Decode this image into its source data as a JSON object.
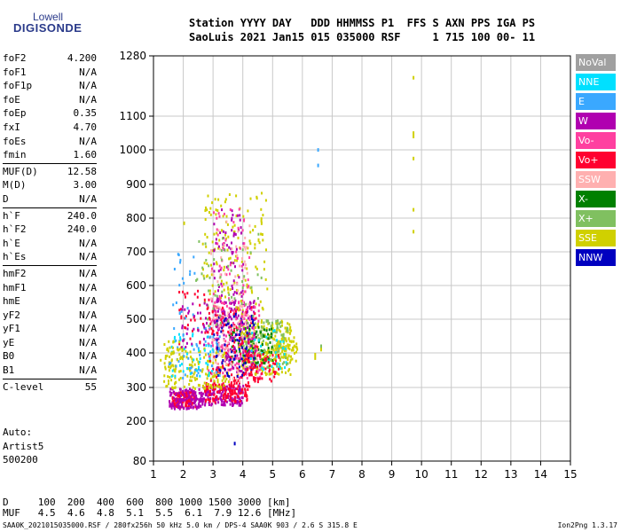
{
  "logo": {
    "line1": "Lowell",
    "line2": "DIGISONDE"
  },
  "header": {
    "line1": "Station YYYY DAY   DDD HHMMSS P1  FFS S AXN PPS IGA PS",
    "line2": "SaoLuis 2021 Jan15 015 035000 RSF     1 715 100 00- 11"
  },
  "params": [
    {
      "group": 0,
      "name": "foF2",
      "value": "4.200"
    },
    {
      "group": 0,
      "name": "foF1",
      "value": "N/A"
    },
    {
      "group": 0,
      "name": "foF1p",
      "value": "N/A"
    },
    {
      "group": 0,
      "name": "foE",
      "value": "N/A"
    },
    {
      "group": 0,
      "name": "foEp",
      "value": "0.35"
    },
    {
      "group": 0,
      "name": "fxI",
      "value": "4.70"
    },
    {
      "group": 0,
      "name": "foEs",
      "value": "N/A"
    },
    {
      "group": 0,
      "name": "fmin",
      "value": "1.60"
    },
    {
      "group": 1,
      "name": "MUF(D)",
      "value": "12.58"
    },
    {
      "group": 1,
      "name": "M(D)",
      "value": "3.00"
    },
    {
      "group": 1,
      "name": "D",
      "value": "N/A"
    },
    {
      "group": 2,
      "name": "h`F",
      "value": "240.0"
    },
    {
      "group": 2,
      "name": "h`F2",
      "value": "240.0"
    },
    {
      "group": 2,
      "name": "h`E",
      "value": "N/A"
    },
    {
      "group": 2,
      "name": "h`Es",
      "value": "N/A"
    },
    {
      "group": 3,
      "name": "hmF2",
      "value": "N/A"
    },
    {
      "group": 3,
      "name": "hmF1",
      "value": "N/A"
    },
    {
      "group": 3,
      "name": "hmE",
      "value": "N/A"
    },
    {
      "group": 3,
      "name": "yF2",
      "value": "N/A"
    },
    {
      "group": 3,
      "name": "yF1",
      "value": "N/A"
    },
    {
      "group": 3,
      "name": "yE",
      "value": "N/A"
    },
    {
      "group": 3,
      "name": "B0",
      "value": "N/A"
    },
    {
      "group": 3,
      "name": "B1",
      "value": "N/A"
    },
    {
      "group": 4,
      "name": "C-level",
      "value": "55"
    }
  ],
  "auto": {
    "line1": "Auto:",
    "line2": "Artist5",
    "line3": "500200"
  },
  "legend": [
    {
      "label": "NoVal",
      "color": "#a0a0a0"
    },
    {
      "label": "NNE",
      "color": "#00e0ff"
    },
    {
      "label": "E",
      "color": "#3aa8ff"
    },
    {
      "label": "W",
      "color": "#b000b0"
    },
    {
      "label": "Vo-",
      "color": "#ff40a0"
    },
    {
      "label": "Vo+",
      "color": "#ff0030"
    },
    {
      "label": "SSW",
      "color": "#ffb0b0"
    },
    {
      "label": "X-",
      "color": "#008000"
    },
    {
      "label": "X+",
      "color": "#80c060"
    },
    {
      "label": "SSE",
      "color": "#d0d000"
    },
    {
      "label": "NNW",
      "color": "#0000c0"
    }
  ],
  "footer": {
    "line1": "D     100  200  400  600  800 1000 1500 3000 [km]",
    "line2": "MUF   4.5  4.6  4.8  5.1  5.5  6.1  7.9 12.6 [MHz]",
    "line3": "SAA0K_2021015035000.RSF / 280fx256h 50 kHz 5.0 km / DPS-4 SAA0K 903 / 2.6 S 315.8 E",
    "line4": "Ion2Png 1.3.17"
  },
  "chart_data": {
    "type": "scatter",
    "x_ticks": [
      1,
      2,
      3,
      4,
      5,
      6,
      7,
      8,
      9,
      10,
      11,
      12,
      13,
      14,
      15
    ],
    "y_ticks": [
      80,
      200,
      300,
      400,
      500,
      600,
      700,
      800,
      900,
      1000,
      1100,
      1280
    ],
    "xlim": [
      1,
      15
    ],
    "ylim": [
      80,
      1280
    ],
    "grid": true,
    "legend_position": "right",
    "clusters": [
      {
        "series": "Vo+",
        "x": [
          1.6,
          2.4
        ],
        "y": [
          245,
          290
        ],
        "n": 140
      },
      {
        "series": "W",
        "x": [
          1.5,
          2.6
        ],
        "y": [
          240,
          300
        ],
        "n": 120
      },
      {
        "series": "W",
        "x": [
          2.6,
          4.0
        ],
        "y": [
          250,
          310
        ],
        "n": 160
      },
      {
        "series": "Vo+",
        "x": [
          2.7,
          4.2
        ],
        "y": [
          260,
          320
        ],
        "n": 120
      },
      {
        "series": "SSE",
        "x": [
          1.3,
          3.5
        ],
        "y": [
          300,
          420
        ],
        "n": 180
      },
      {
        "series": "SSE",
        "x": [
          3.8,
          5.6
        ],
        "y": [
          340,
          500
        ],
        "n": 240
      },
      {
        "series": "X+",
        "x": [
          4.0,
          5.5
        ],
        "y": [
          360,
          500
        ],
        "n": 120
      },
      {
        "series": "X-",
        "x": [
          3.5,
          5.0
        ],
        "y": [
          370,
          480
        ],
        "n": 80
      },
      {
        "series": "W",
        "x": [
          3.0,
          4.4
        ],
        "y": [
          330,
          560
        ],
        "n": 160
      },
      {
        "series": "Vo-",
        "x": [
          2.8,
          4.6
        ],
        "y": [
          330,
          560
        ],
        "n": 130
      },
      {
        "series": "Vo+",
        "x": [
          2.8,
          4.5
        ],
        "y": [
          320,
          540
        ],
        "n": 100
      },
      {
        "series": "SSW",
        "x": [
          2.9,
          4.5
        ],
        "y": [
          320,
          520
        ],
        "n": 70
      },
      {
        "series": "NNW",
        "x": [
          3.0,
          4.4
        ],
        "y": [
          330,
          520
        ],
        "n": 70
      },
      {
        "series": "E",
        "x": [
          1.5,
          3.2
        ],
        "y": [
          330,
          480
        ],
        "n": 50
      },
      {
        "series": "NNE",
        "x": [
          1.5,
          3.0
        ],
        "y": [
          330,
          460
        ],
        "n": 40
      },
      {
        "series": "SSE",
        "x": [
          2.6,
          4.8
        ],
        "y": [
          520,
          880
        ],
        "n": 140
      },
      {
        "series": "W",
        "x": [
          3.0,
          4.0
        ],
        "y": [
          480,
          830
        ],
        "n": 90
      },
      {
        "series": "Vo-",
        "x": [
          2.9,
          4.2
        ],
        "y": [
          500,
          830
        ],
        "n": 60
      },
      {
        "series": "SSW",
        "x": [
          2.9,
          4.2
        ],
        "y": [
          500,
          800
        ],
        "n": 50
      },
      {
        "series": "X+",
        "x": [
          2.4,
          4.6
        ],
        "y": [
          480,
          760
        ],
        "n": 50
      },
      {
        "series": "Vo+",
        "x": [
          1.8,
          3.0
        ],
        "y": [
          430,
          600
        ],
        "n": 40
      },
      {
        "series": "E",
        "x": [
          1.6,
          2.4
        ],
        "y": [
          500,
          700
        ],
        "n": 20
      },
      {
        "series": "SSE",
        "x": [
          5.0,
          5.8
        ],
        "y": [
          380,
          450
        ],
        "n": 60
      },
      {
        "series": "NNE",
        "x": [
          4.2,
          5.5
        ],
        "y": [
          350,
          480
        ],
        "n": 30
      },
      {
        "series": "W",
        "x": [
          1.9,
          2.8
        ],
        "y": [
          420,
          560
        ],
        "n": 30
      },
      {
        "series": "Vo+",
        "x": [
          4.0,
          5.2
        ],
        "y": [
          320,
          400
        ],
        "n": 60
      },
      {
        "series": "SSE",
        "x": [
          1.2,
          2.0
        ],
        "y": [
          380,
          440
        ],
        "n": 20
      }
    ],
    "points": [
      {
        "series": "SSE",
        "x": 9.7,
        "y": 1220
      },
      {
        "series": "SSE",
        "x": 9.7,
        "y": 1055
      },
      {
        "series": "SSE",
        "x": 9.7,
        "y": 1045
      },
      {
        "series": "SSE",
        "x": 9.7,
        "y": 980
      },
      {
        "series": "SSE",
        "x": 9.7,
        "y": 830
      },
      {
        "series": "SSE",
        "x": 9.7,
        "y": 765
      },
      {
        "series": "E",
        "x": 6.5,
        "y": 1005
      },
      {
        "series": "E",
        "x": 6.5,
        "y": 960
      },
      {
        "series": "SSE",
        "x": 6.4,
        "y": 400
      },
      {
        "series": "SSE",
        "x": 6.4,
        "y": 390
      },
      {
        "series": "X+",
        "x": 6.6,
        "y": 425
      },
      {
        "series": "SSE",
        "x": 6.6,
        "y": 415
      },
      {
        "series": "NNW",
        "x": 3.7,
        "y": 138
      },
      {
        "series": "SSE",
        "x": 4.6,
        "y": 790
      },
      {
        "series": "SSE",
        "x": 4.5,
        "y": 740
      },
      {
        "series": "SSE",
        "x": 2.0,
        "y": 790
      }
    ]
  }
}
